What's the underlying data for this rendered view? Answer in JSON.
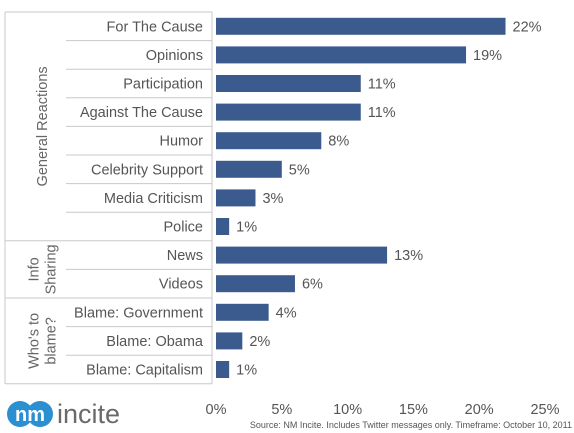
{
  "chart_data": {
    "type": "bar",
    "orientation": "horizontal",
    "categories": [
      "For The Cause",
      "Opinions",
      "Participation",
      "Against The Cause",
      "Humor",
      "Celebrity Support",
      "Media Criticism",
      "Police",
      "News",
      "Videos",
      "Blame: Government",
      "Blame: Obama",
      "Blame: Capitalism"
    ],
    "values": [
      22,
      19,
      11,
      11,
      8,
      5,
      3,
      1,
      13,
      6,
      4,
      2,
      1
    ],
    "value_labels": [
      "22%",
      "19%",
      "11%",
      "11%",
      "8%",
      "5%",
      "3%",
      "1%",
      "13%",
      "6%",
      "4%",
      "2%",
      "1%"
    ],
    "groups": [
      {
        "label": "General Reactions",
        "start": 0,
        "count": 8
      },
      {
        "label_lines": [
          "Info",
          "Sharing"
        ],
        "start": 8,
        "count": 2
      },
      {
        "label_lines": [
          "Who's to",
          "blame?"
        ],
        "start": 10,
        "count": 3
      }
    ],
    "x_ticks": [
      0,
      5,
      10,
      15,
      20,
      25
    ],
    "x_tick_labels": [
      "0%",
      "5%",
      "10%",
      "15%",
      "20%",
      "25%"
    ],
    "xlim": [
      0,
      25
    ],
    "bar_color": "#3b5b8e",
    "grid": false
  },
  "source_text": "Source: NM Incite. Includes Twitter messages only.  Timeframe: October 10, 2011",
  "logo": {
    "mark": "nm",
    "text": "incite",
    "mark_color": "#2b8fd1"
  }
}
